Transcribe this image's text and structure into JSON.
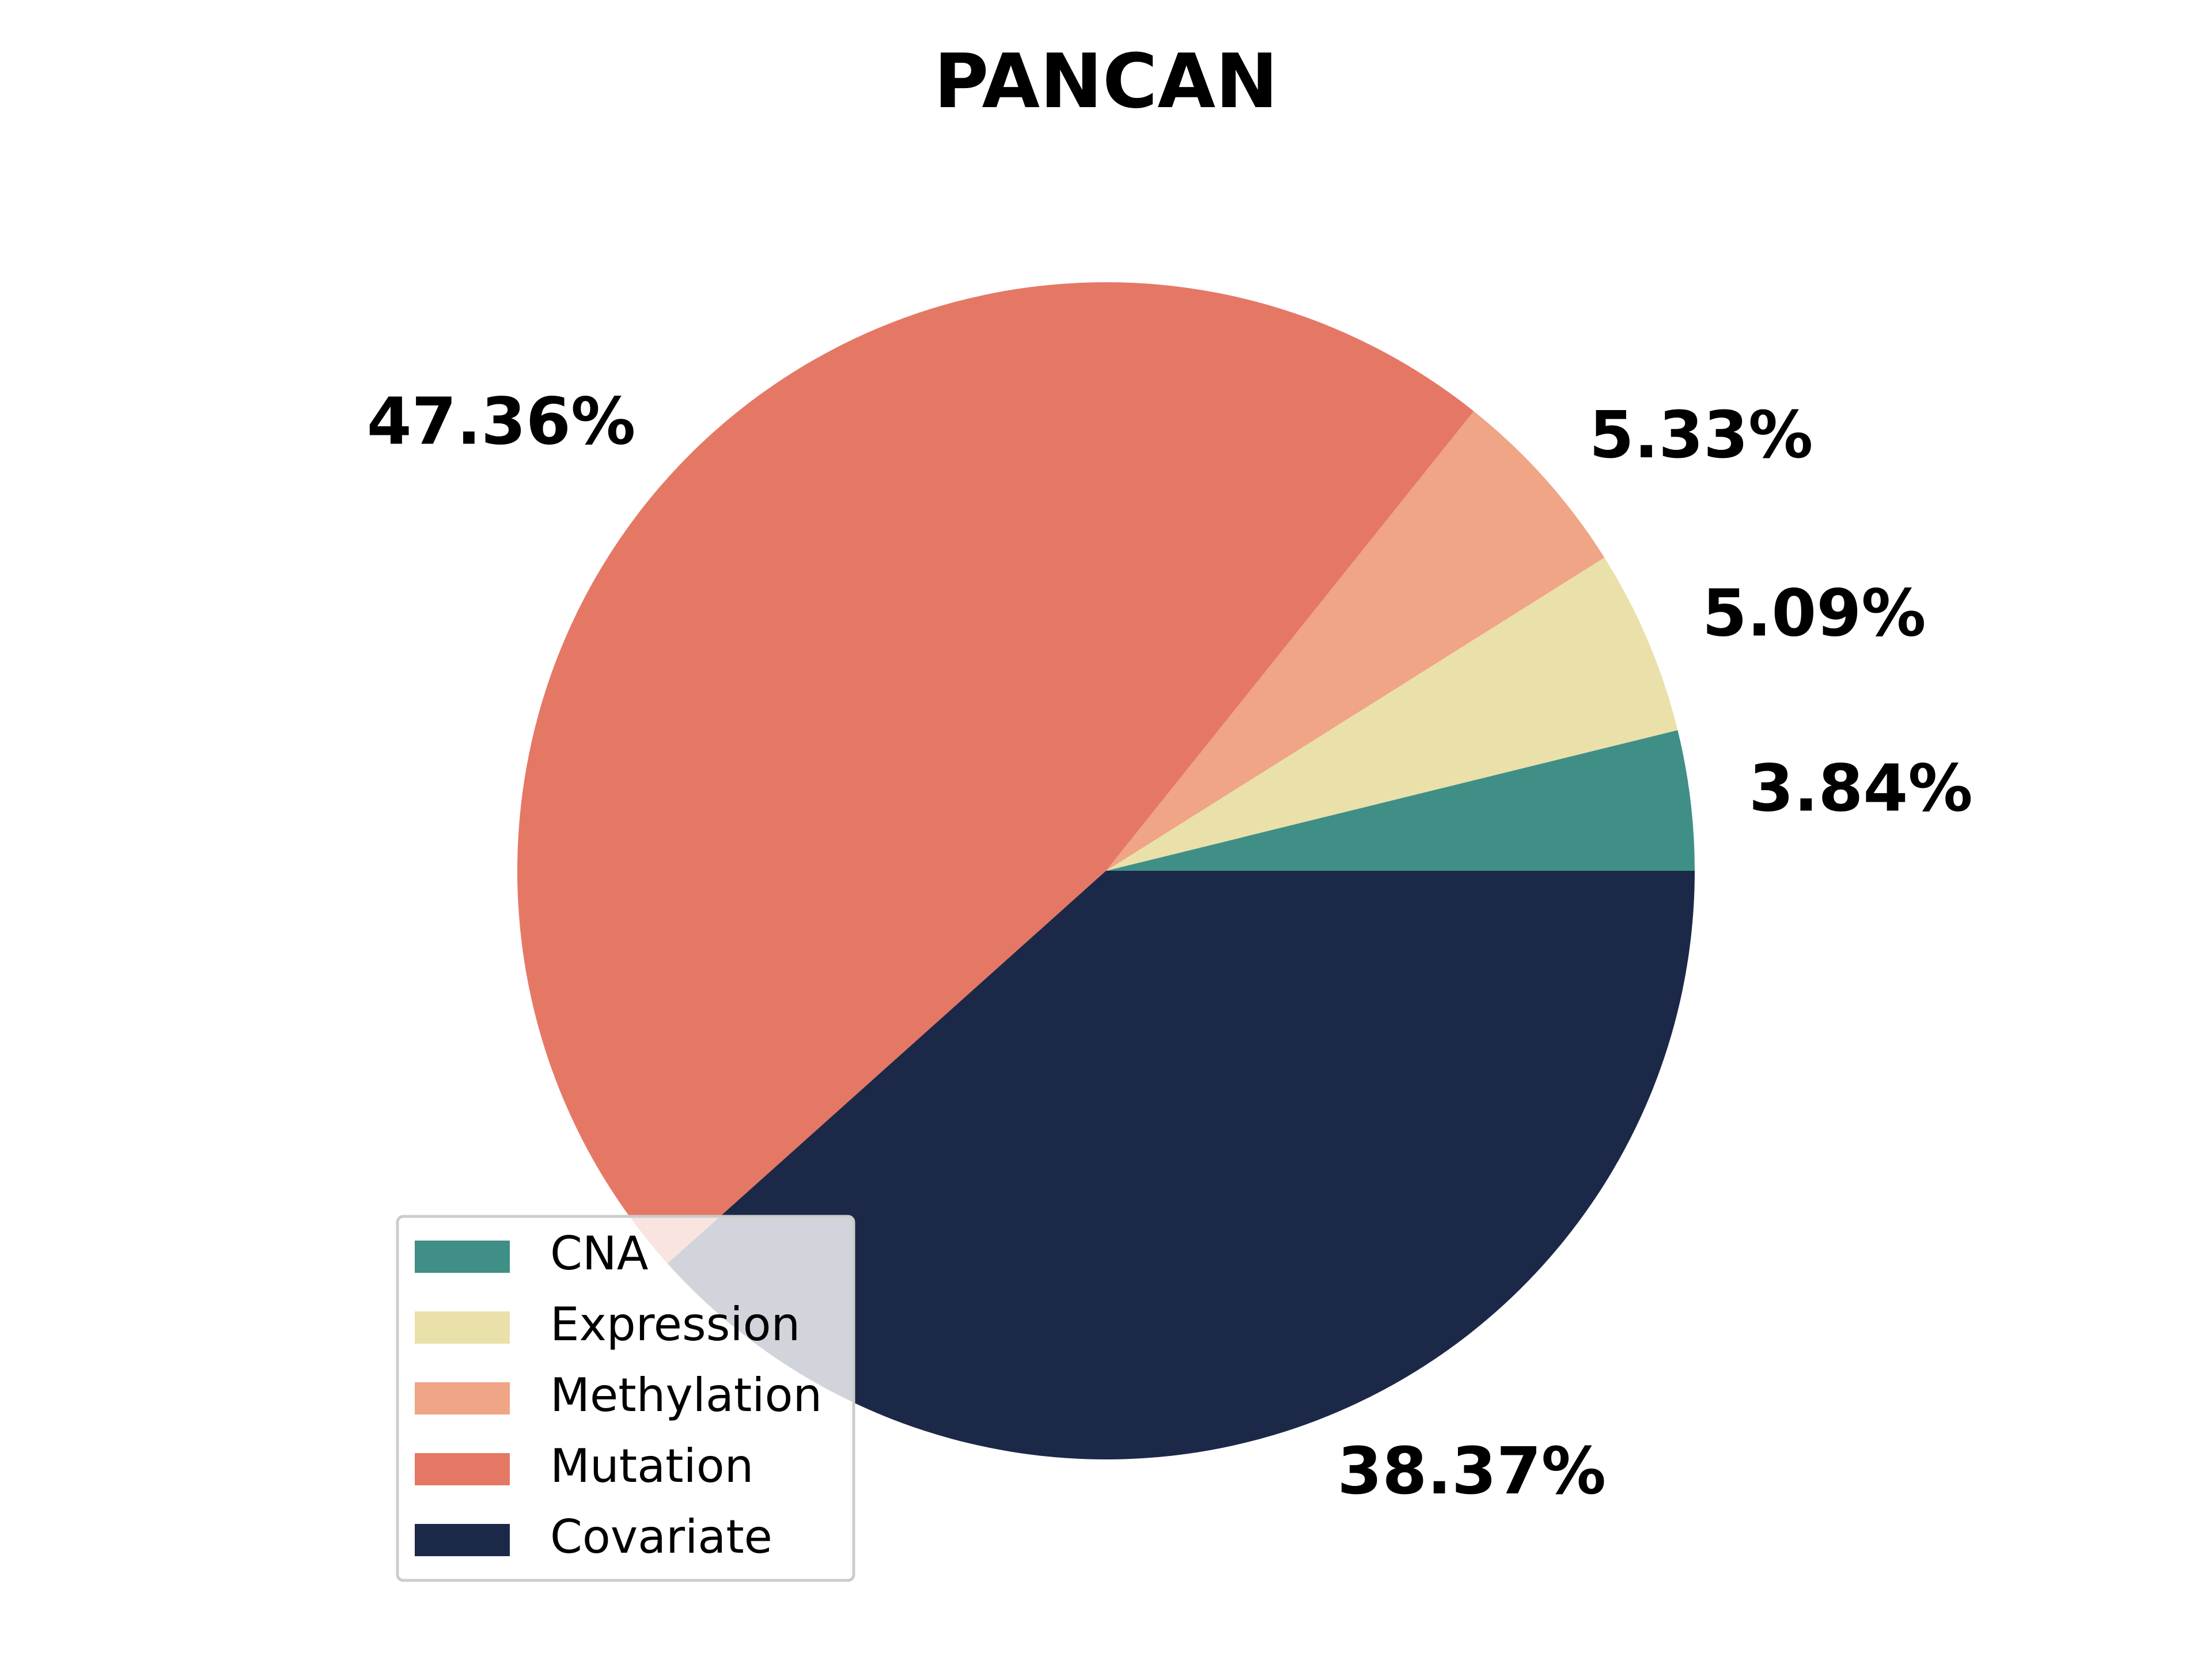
{
  "chart_data": {
    "type": "pie",
    "title": "PANCAN",
    "slices": [
      {
        "name": "CNA",
        "value": 3.84,
        "label": "3.84%",
        "color": "#3F8F86"
      },
      {
        "name": "Expression",
        "value": 5.09,
        "label": "5.09%",
        "color": "#EAE0AA"
      },
      {
        "name": "Methylation",
        "value": 5.33,
        "label": "5.33%",
        "color": "#EFA586"
      },
      {
        "name": "Mutation",
        "value": 47.36,
        "label": "47.36%",
        "color": "#E57865"
      },
      {
        "name": "Covariate",
        "value": 38.37,
        "label": "38.37%",
        "color": "#1C2848"
      }
    ],
    "start_angle_deg": 0,
    "direction": "counterclockwise",
    "legend_position": "lower-left"
  }
}
